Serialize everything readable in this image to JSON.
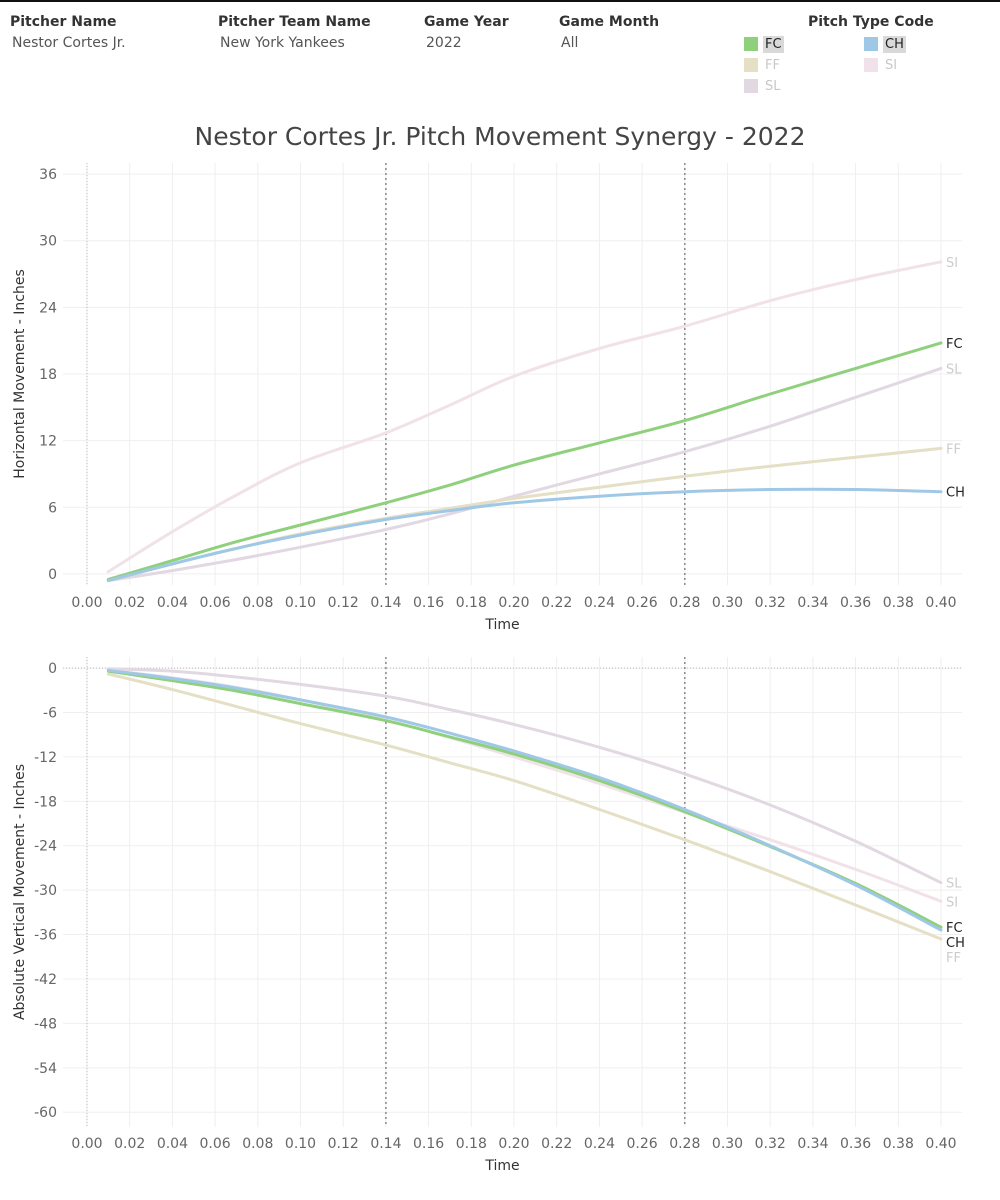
{
  "filters": [
    {
      "label": "Pitcher Name",
      "value": "Nestor Cortes Jr."
    },
    {
      "label": "Pitcher Team Name",
      "value": "New York Yankees"
    },
    {
      "label": "Game Year",
      "value": "2022"
    },
    {
      "label": "Game Month",
      "value": "All"
    }
  ],
  "legend": {
    "title": "Pitch Type Code",
    "items": [
      {
        "code": "FC",
        "color": "#8fd07d",
        "active": true
      },
      {
        "code": "CH",
        "color": "#9fc8e6",
        "active": true
      },
      {
        "code": "FF",
        "color": "#e4dfc5",
        "active": false
      },
      {
        "code": "SI",
        "color": "#f0e2e8",
        "active": false
      },
      {
        "code": "SL",
        "color": "#e2d8e2",
        "active": false
      }
    ]
  },
  "chart_title": "Nestor Cortes Jr. Pitch Movement Synergy - 2022",
  "chart_data": [
    {
      "type": "line",
      "xlabel": "Time",
      "ylabel": "Horizontal Movement - Inches",
      "xlim": [
        0,
        0.4
      ],
      "ylim": [
        -1,
        37
      ],
      "xticks": [
        "0.00",
        "0.02",
        "0.04",
        "0.06",
        "0.08",
        "0.10",
        "0.12",
        "0.14",
        "0.16",
        "0.18",
        "0.20",
        "0.22",
        "0.24",
        "0.26",
        "0.28",
        "0.30",
        "0.32",
        "0.34",
        "0.36",
        "0.38",
        "0.40"
      ],
      "yticks": [
        "0",
        "6",
        "12",
        "18",
        "24",
        "30",
        "36"
      ],
      "reference_lines_x": [
        0.14,
        0.28
      ],
      "x": [
        0.01,
        0.04,
        0.07,
        0.1,
        0.14,
        0.17,
        0.2,
        0.24,
        0.28,
        0.32,
        0.36,
        0.4
      ],
      "series": [
        {
          "name": "SI",
          "color": "#f0e2e8",
          "label_color": "#cccccc",
          "values": [
            0.2,
            3.8,
            7.1,
            10.0,
            12.7,
            15.2,
            17.8,
            20.3,
            22.3,
            24.6,
            26.5,
            28.1
          ]
        },
        {
          "name": "FC",
          "color": "#8fd07d",
          "label_color": "#222222",
          "values": [
            -0.5,
            1.2,
            2.9,
            4.4,
            6.4,
            8.0,
            9.8,
            11.8,
            13.8,
            16.2,
            18.5,
            20.8
          ]
        },
        {
          "name": "SL",
          "color": "#e2d8e2",
          "label_color": "#cccccc",
          "values": [
            -0.6,
            0.3,
            1.3,
            2.4,
            4.0,
            5.4,
            7.0,
            9.0,
            11.0,
            13.3,
            15.9,
            18.5
          ]
        },
        {
          "name": "FF",
          "color": "#e4dfc5",
          "label_color": "#cccccc",
          "values": [
            -0.6,
            0.9,
            2.3,
            3.6,
            5.0,
            5.9,
            6.8,
            7.8,
            8.8,
            9.7,
            10.5,
            11.3
          ]
        },
        {
          "name": "CH",
          "color": "#9fc8e6",
          "label_color": "#222222",
          "values": [
            -0.6,
            0.9,
            2.3,
            3.5,
            4.9,
            5.7,
            6.4,
            7.0,
            7.4,
            7.6,
            7.6,
            7.4
          ]
        }
      ]
    },
    {
      "type": "line",
      "xlabel": "Time",
      "ylabel": "Absolute Vertical Movement - Inches",
      "xlim": [
        0,
        0.4
      ],
      "ylim": [
        -62,
        1.5
      ],
      "xticks": [
        "0.00",
        "0.02",
        "0.04",
        "0.06",
        "0.08",
        "0.10",
        "0.12",
        "0.14",
        "0.16",
        "0.18",
        "0.20",
        "0.22",
        "0.24",
        "0.26",
        "0.28",
        "0.30",
        "0.32",
        "0.34",
        "0.36",
        "0.38",
        "0.40"
      ],
      "yticks": [
        "0",
        "-6",
        "-12",
        "-18",
        "-24",
        "-30",
        "-36",
        "-42",
        "-48",
        "-54",
        "-60"
      ],
      "reference_lines_x": [
        0.14,
        0.28
      ],
      "x": [
        0.01,
        0.04,
        0.07,
        0.1,
        0.14,
        0.17,
        0.2,
        0.24,
        0.28,
        0.32,
        0.36,
        0.4
      ],
      "series": [
        {
          "name": "SL",
          "color": "#e2d8e2",
          "label_color": "#cccccc",
          "values": [
            -0.1,
            -0.4,
            -1.2,
            -2.2,
            -3.8,
            -5.6,
            -7.6,
            -10.7,
            -14.3,
            -18.5,
            -23.4,
            -29.0
          ]
        },
        {
          "name": "SI",
          "color": "#f0e2e8",
          "label_color": "#cccccc",
          "values": [
            -0.3,
            -1.3,
            -2.6,
            -4.3,
            -7.0,
            -9.4,
            -12.0,
            -15.6,
            -19.5,
            -23.2,
            -27.2,
            -31.5
          ]
        },
        {
          "name": "FC",
          "color": "#8fd07d",
          "label_color": "#222222",
          "values": [
            -0.4,
            -1.7,
            -3.1,
            -4.8,
            -7.1,
            -9.3,
            -11.6,
            -15.2,
            -19.4,
            -24.1,
            -29.1,
            -35.0
          ]
        },
        {
          "name": "CH",
          "color": "#9fc8e6",
          "label_color": "#222222",
          "values": [
            -0.3,
            -1.4,
            -2.7,
            -4.3,
            -6.6,
            -8.8,
            -11.2,
            -14.8,
            -19.1,
            -24.0,
            -29.3,
            -35.4
          ]
        },
        {
          "name": "FF",
          "color": "#e4dfc5",
          "label_color": "#cccccc",
          "values": [
            -0.8,
            -2.9,
            -5.2,
            -7.5,
            -10.4,
            -12.8,
            -15.2,
            -19.1,
            -23.2,
            -27.5,
            -32.0,
            -36.6
          ]
        }
      ]
    }
  ]
}
